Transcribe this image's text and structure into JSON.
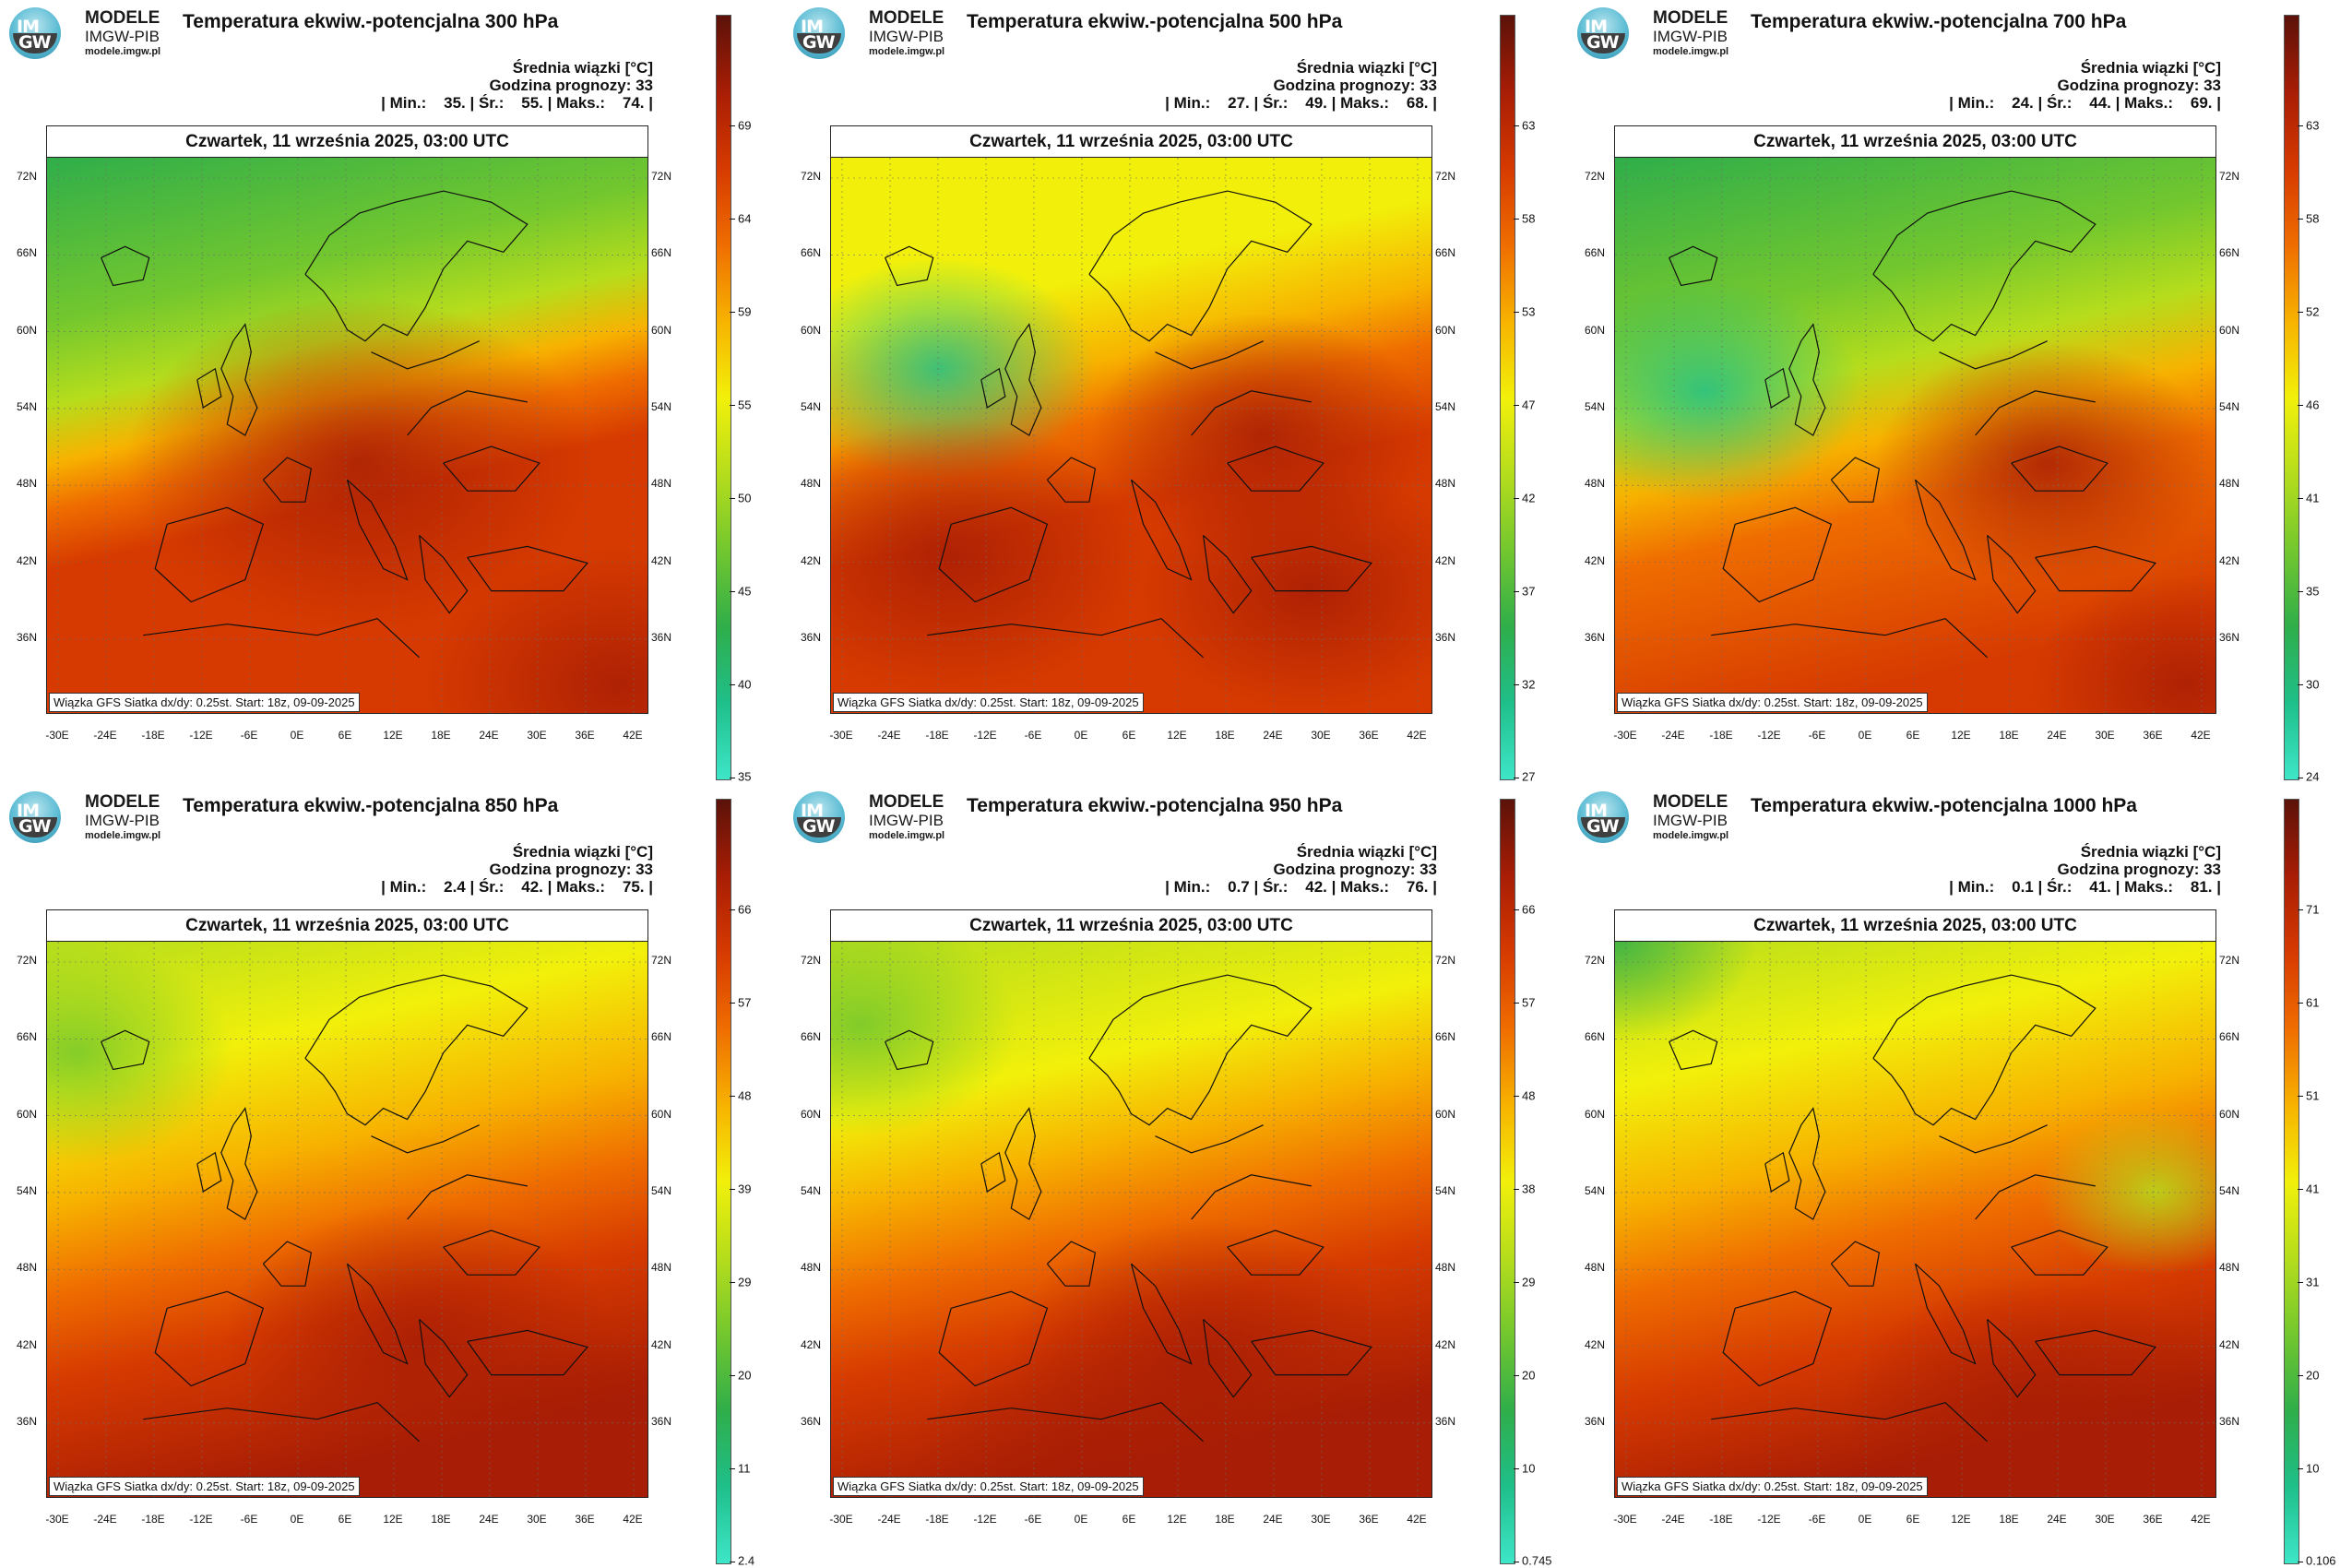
{
  "brand": {
    "name": "MODELE",
    "org": "IMGW-PIB",
    "site": "modele.imgw.pl",
    "logo_top": "IM",
    "logo_bottom": "GW"
  },
  "common": {
    "date_line": "Czwartek, 11 września 2025, 03:00 UTC",
    "subtitle_unit": "Średnia wiązki [°C]",
    "forecast_hour": "Godzina prognozy: 33",
    "footer": "Wiązka GFS Siatka dx/dy: 0.25st. Start: 18z, 09-09-2025",
    "lat_labels": [
      "72N",
      "66N",
      "60N",
      "54N",
      "48N",
      "42N",
      "36N"
    ],
    "lon_labels": [
      "-30E",
      "-24E",
      "-18E",
      "-12E",
      "-6E",
      "0E",
      "6E",
      "12E",
      "18E",
      "24E",
      "30E",
      "36E",
      "42E"
    ],
    "colorscale": [
      "#3ee6c8",
      "#1fbf8a",
      "#2fae4a",
      "#73c72e",
      "#b5dd1c",
      "#f2f00a",
      "#f7b200",
      "#ef6d00",
      "#d63a00",
      "#a81d05",
      "#5c1209"
    ]
  },
  "panels": [
    {
      "title": "Temperatura ekwiw.-potencjalna 300 hPa",
      "stats": "| Min.:    35. | Śr.:    55. | Maks.:    74. |",
      "cbar_labels": [
        "69",
        "64",
        "59",
        "55",
        "50",
        "45",
        "40",
        "35"
      ]
    },
    {
      "title": "Temperatura ekwiw.-potencjalna 500 hPa",
      "stats": "| Min.:    27. | Śr.:    49. | Maks.:    68. |",
      "cbar_labels": [
        "63",
        "58",
        "53",
        "47",
        "42",
        "37",
        "32",
        "27"
      ]
    },
    {
      "title": "Temperatura ekwiw.-potencjalna 700 hPa",
      "stats": "| Min.:    24. | Śr.:    44. | Maks.:    69. |",
      "cbar_labels": [
        "63",
        "58",
        "52",
        "46",
        "41",
        "35",
        "30",
        "24"
      ]
    },
    {
      "title": "Temperatura ekwiw.-potencjalna 850 hPa",
      "stats": "| Min.:    2.4 | Śr.:    42. | Maks.:    75. |",
      "cbar_labels": [
        "66",
        "57",
        "48",
        "39",
        "29",
        "20",
        "11",
        "2.4"
      ]
    },
    {
      "title": "Temperatura ekwiw.-potencjalna 950 hPa",
      "stats": "| Min.:    0.7 | Śr.:    42. | Maks.:    76. |",
      "cbar_labels": [
        "66",
        "57",
        "48",
        "38",
        "29",
        "20",
        "10",
        "0.745"
      ]
    },
    {
      "title": "Temperatura ekwiw.-potencjalna 1000 hPa",
      "stats": "| Min.:    0.1 | Śr.:    41. | Maks.:    81. |",
      "cbar_labels": [
        "71",
        "61",
        "51",
        "41",
        "31",
        "20",
        "10",
        "0.106"
      ]
    }
  ]
}
